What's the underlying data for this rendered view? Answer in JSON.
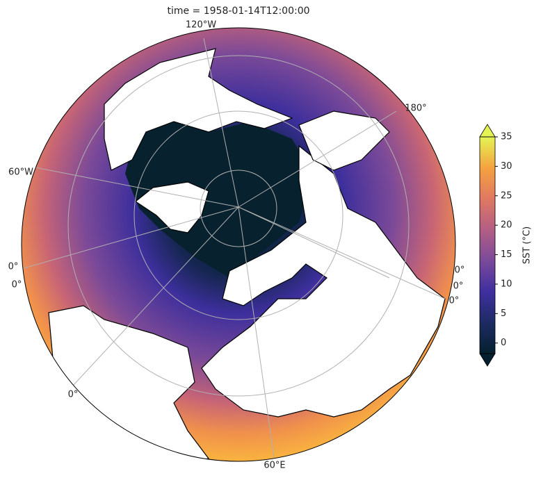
{
  "title": "time = 1958-01-14T12:00:00",
  "gridline_labels": [
    "120°W",
    "180°",
    "60°W",
    "0°",
    "0°",
    "0°",
    "0°",
    "0°",
    "0°",
    "60°E"
  ],
  "colorbar": {
    "label": "SST (°C)",
    "lim": [
      -1.8,
      35
    ],
    "ticks": [
      0,
      5,
      10,
      15,
      20,
      25,
      30,
      35
    ],
    "extend": "both",
    "colormap": [
      "#04202e",
      "#1d2b63",
      "#3f2fa0",
      "#7a4a9a",
      "#b35e85",
      "#e07862",
      "#f5a240",
      "#e3f454"
    ]
  }
}
